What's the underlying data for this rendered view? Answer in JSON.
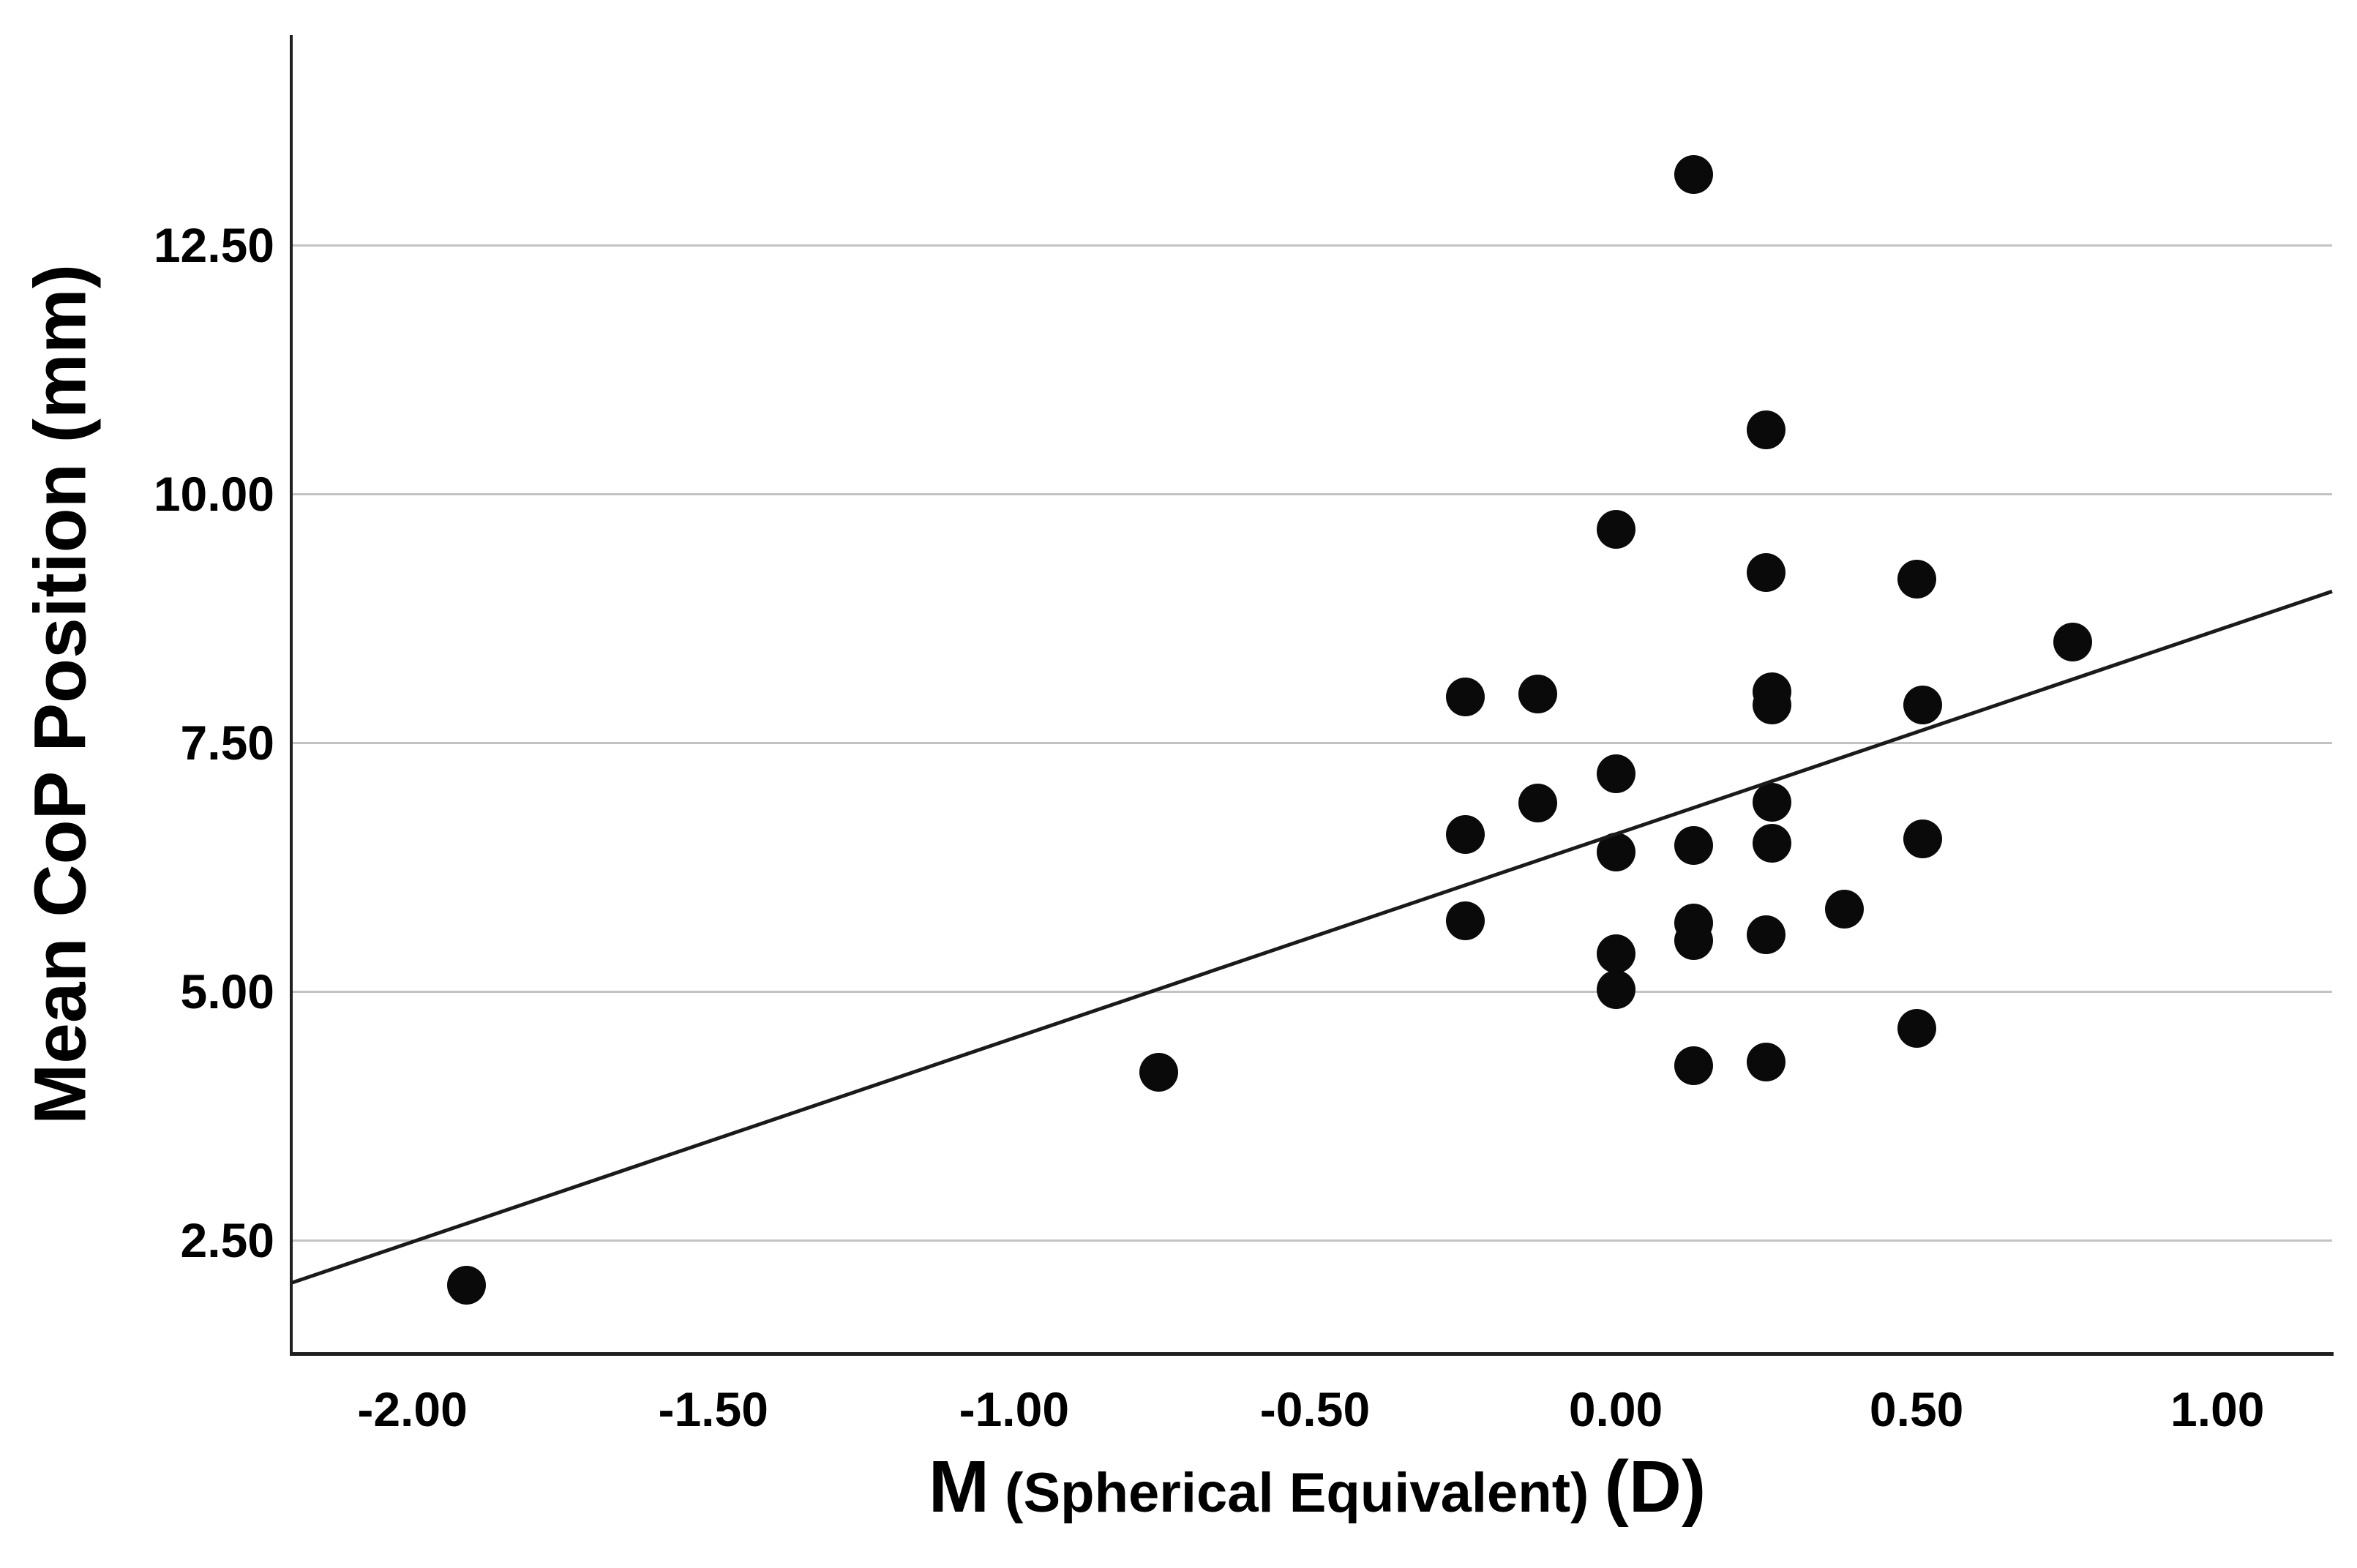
{
  "chart_data": {
    "type": "scatter",
    "title": "",
    "ylabel": "Mean CoP Position (mm)",
    "xlabel_main": "M",
    "xlabel_sub": "(Spherical Equivalent)",
    "xlabel_unit": "(D)",
    "xlim": [
      -2.2014,
      1.1906
    ],
    "ylim": [
      1.36,
      14.61
    ],
    "grid": "horizontal-only",
    "legend": "none",
    "x_ticks": [
      {
        "value": -2.0,
        "label": "-2.00"
      },
      {
        "value": -1.5,
        "label": "-1.50"
      },
      {
        "value": -1.0,
        "label": "-1.00"
      },
      {
        "value": -0.5,
        "label": "-0.50"
      },
      {
        "value": 0.0,
        "label": "0.00"
      },
      {
        "value": 0.5,
        "label": "0.50"
      },
      {
        "value": 1.0,
        "label": "1.00"
      }
    ],
    "y_ticks": [
      {
        "value": 2.5,
        "label": "2.50"
      },
      {
        "value": 5.0,
        "label": "5.00"
      },
      {
        "value": 7.5,
        "label": "7.50"
      },
      {
        "value": 10.0,
        "label": "10.00"
      },
      {
        "value": 12.5,
        "label": "12.50"
      }
    ],
    "points": [
      [
        -1.91,
        2.05
      ],
      [
        -0.76,
        4.19
      ],
      [
        -0.25,
        7.96
      ],
      [
        -0.25,
        6.58
      ],
      [
        -0.25,
        5.71
      ],
      [
        -0.13,
        7.99
      ],
      [
        -0.13,
        6.89
      ],
      [
        0.0,
        9.64
      ],
      [
        0.0,
        7.19
      ],
      [
        0.0,
        6.4
      ],
      [
        0.0,
        5.38
      ],
      [
        0.0,
        5.02
      ],
      [
        0.13,
        13.21
      ],
      [
        0.13,
        6.47
      ],
      [
        0.13,
        5.69
      ],
      [
        0.13,
        5.51
      ],
      [
        0.13,
        4.25
      ],
      [
        0.25,
        10.64
      ],
      [
        0.25,
        9.21
      ],
      [
        0.26,
        8.01
      ],
      [
        0.26,
        7.88
      ],
      [
        0.26,
        6.9
      ],
      [
        0.26,
        6.49
      ],
      [
        0.25,
        5.57
      ],
      [
        0.25,
        4.29
      ],
      [
        0.38,
        5.83
      ],
      [
        0.5,
        9.14
      ],
      [
        0.51,
        7.88
      ],
      [
        0.51,
        6.53
      ],
      [
        0.5,
        4.63
      ],
      [
        0.76,
        8.51
      ]
    ],
    "fit_line": {
      "x1": -2.2014,
      "y1": 2.07,
      "x2": 1.1906,
      "y2": 9.02
    },
    "colors": {
      "point": "#0a0a0a",
      "fit_line": "#1a1a1a",
      "axis": "#1f1f1f",
      "grid": "#c3c3c3",
      "text": "#000000",
      "background": "#ffffff"
    }
  }
}
